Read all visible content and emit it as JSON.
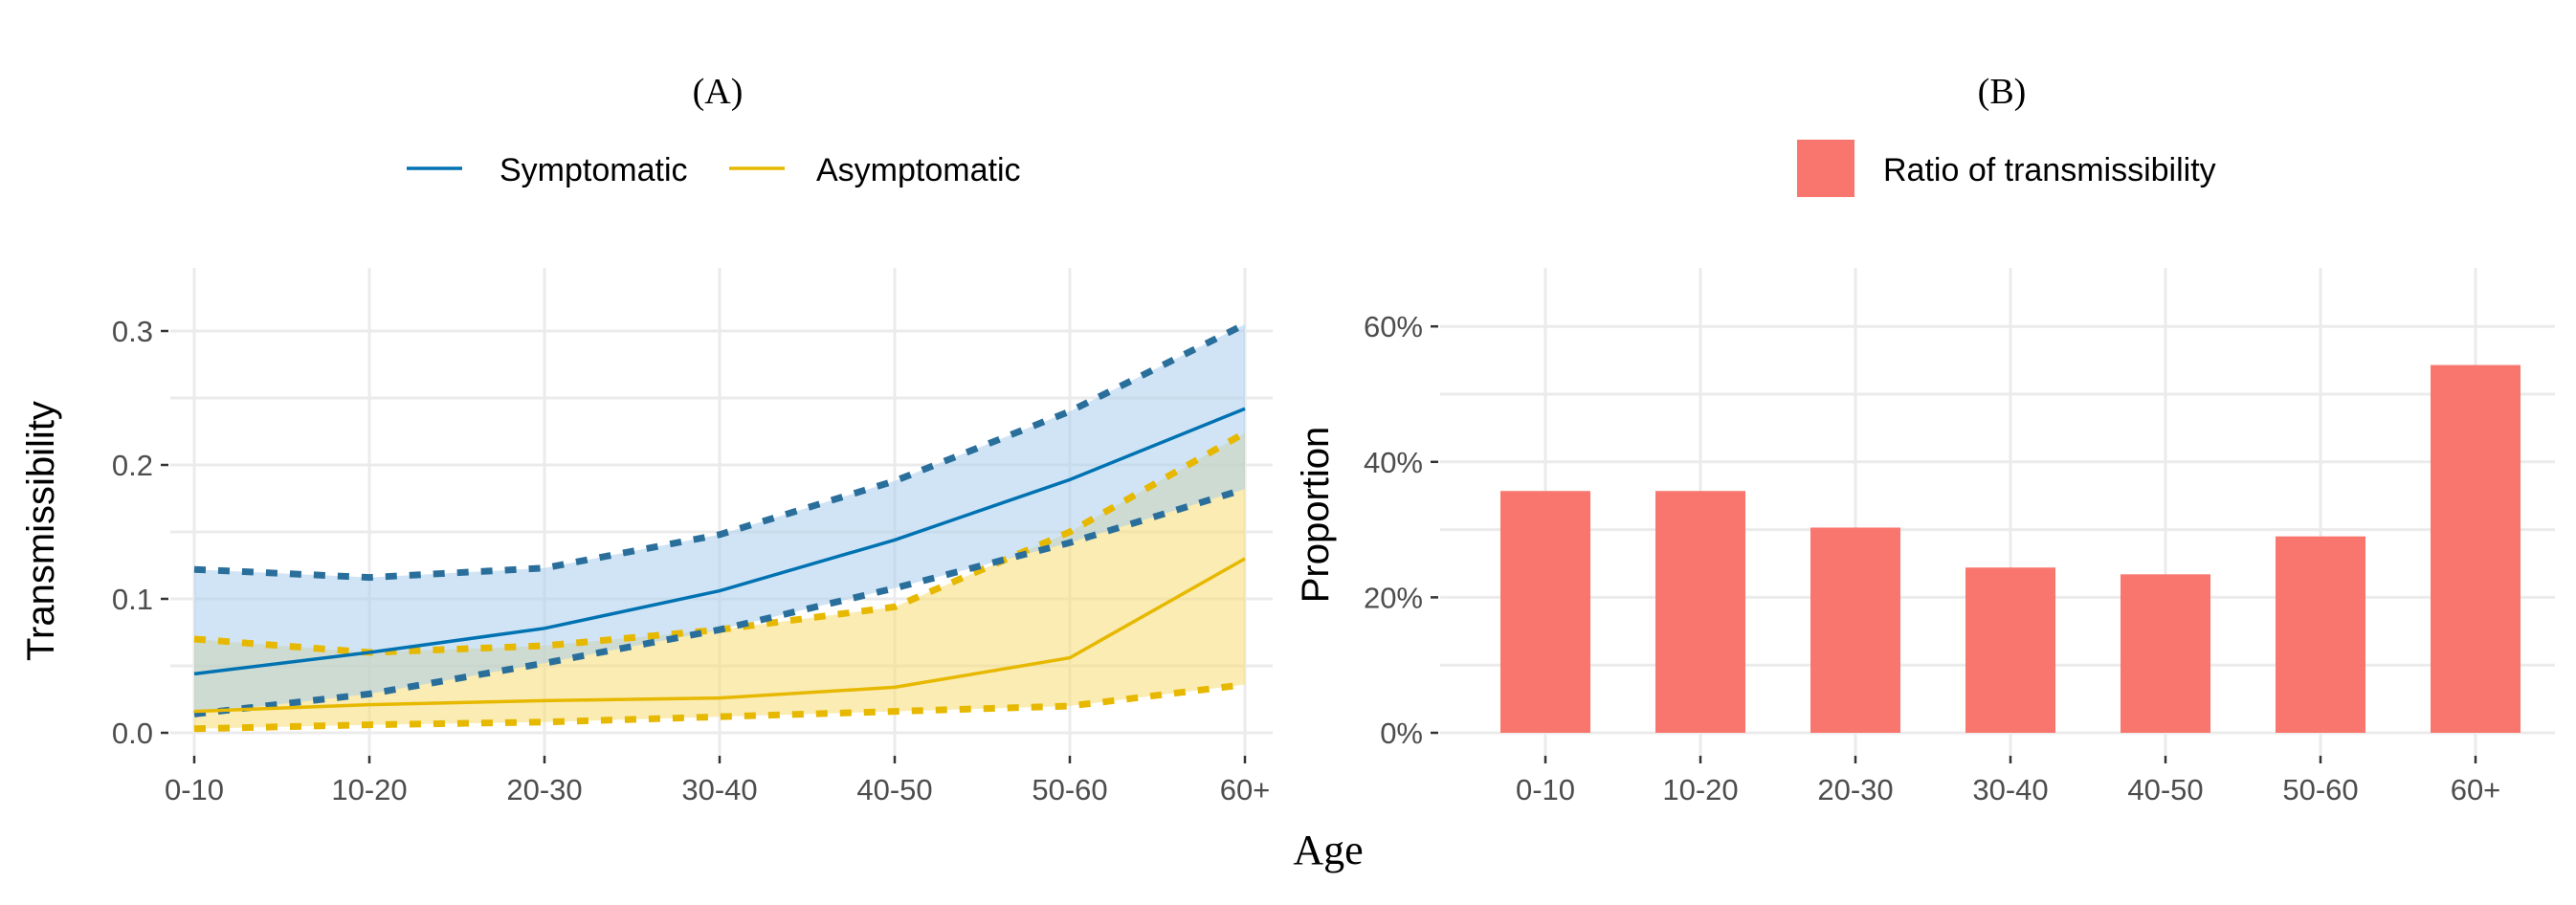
{
  "shared_xlabel": "Age",
  "chart_data": [
    {
      "panel": "(A)",
      "type": "line",
      "title": "(A)",
      "xlabel": "",
      "ylabel": "Transmissibility",
      "categories": [
        "0-10",
        "10-20",
        "20-30",
        "30-40",
        "40-50",
        "50-60",
        "60+"
      ],
      "ylim": [
        0,
        0.33
      ],
      "yticks": [
        0.0,
        0.1,
        0.2,
        0.3
      ],
      "ytick_labels": [
        "0.0",
        "0.1",
        "0.2",
        "0.3"
      ],
      "grid": true,
      "legend_position": "top",
      "series": [
        {
          "name": "Symptomatic",
          "color": "#0072B2",
          "fill": "#cfe3f3",
          "values": [
            0.044,
            0.06,
            0.078,
            0.106,
            0.144,
            0.189,
            0.242
          ],
          "lower": [
            0.014,
            0.029,
            0.052,
            0.077,
            0.108,
            0.142,
            0.182
          ],
          "upper": [
            0.122,
            0.116,
            0.123,
            0.148,
            0.188,
            0.24,
            0.305
          ]
        },
        {
          "name": "Asymptomatic",
          "color": "#E7B800",
          "fill": "#fbf0c4",
          "values": [
            0.016,
            0.021,
            0.024,
            0.026,
            0.034,
            0.056,
            0.13
          ],
          "lower": [
            0.003,
            0.006,
            0.008,
            0.012,
            0.016,
            0.02,
            0.036
          ],
          "upper": [
            0.07,
            0.06,
            0.065,
            0.077,
            0.094,
            0.15,
            0.224
          ]
        }
      ]
    },
    {
      "panel": "(B)",
      "type": "bar",
      "title": "(B)",
      "xlabel": "",
      "ylabel": "Proportion",
      "categories": [
        "0-10",
        "10-20",
        "20-30",
        "30-40",
        "40-50",
        "50-60",
        "60+"
      ],
      "series": [
        {
          "name": "Ratio of transmissibility",
          "color": "#F8766D",
          "values": [
            0.357,
            0.357,
            0.303,
            0.244,
            0.234,
            0.29,
            0.543
          ]
        }
      ],
      "ylim": [
        0,
        0.66
      ],
      "yticks": [
        0,
        0.2,
        0.4,
        0.6
      ],
      "ytick_labels": [
        "0%",
        "20%",
        "40%",
        "60%"
      ],
      "grid": true,
      "legend_position": "top"
    }
  ]
}
